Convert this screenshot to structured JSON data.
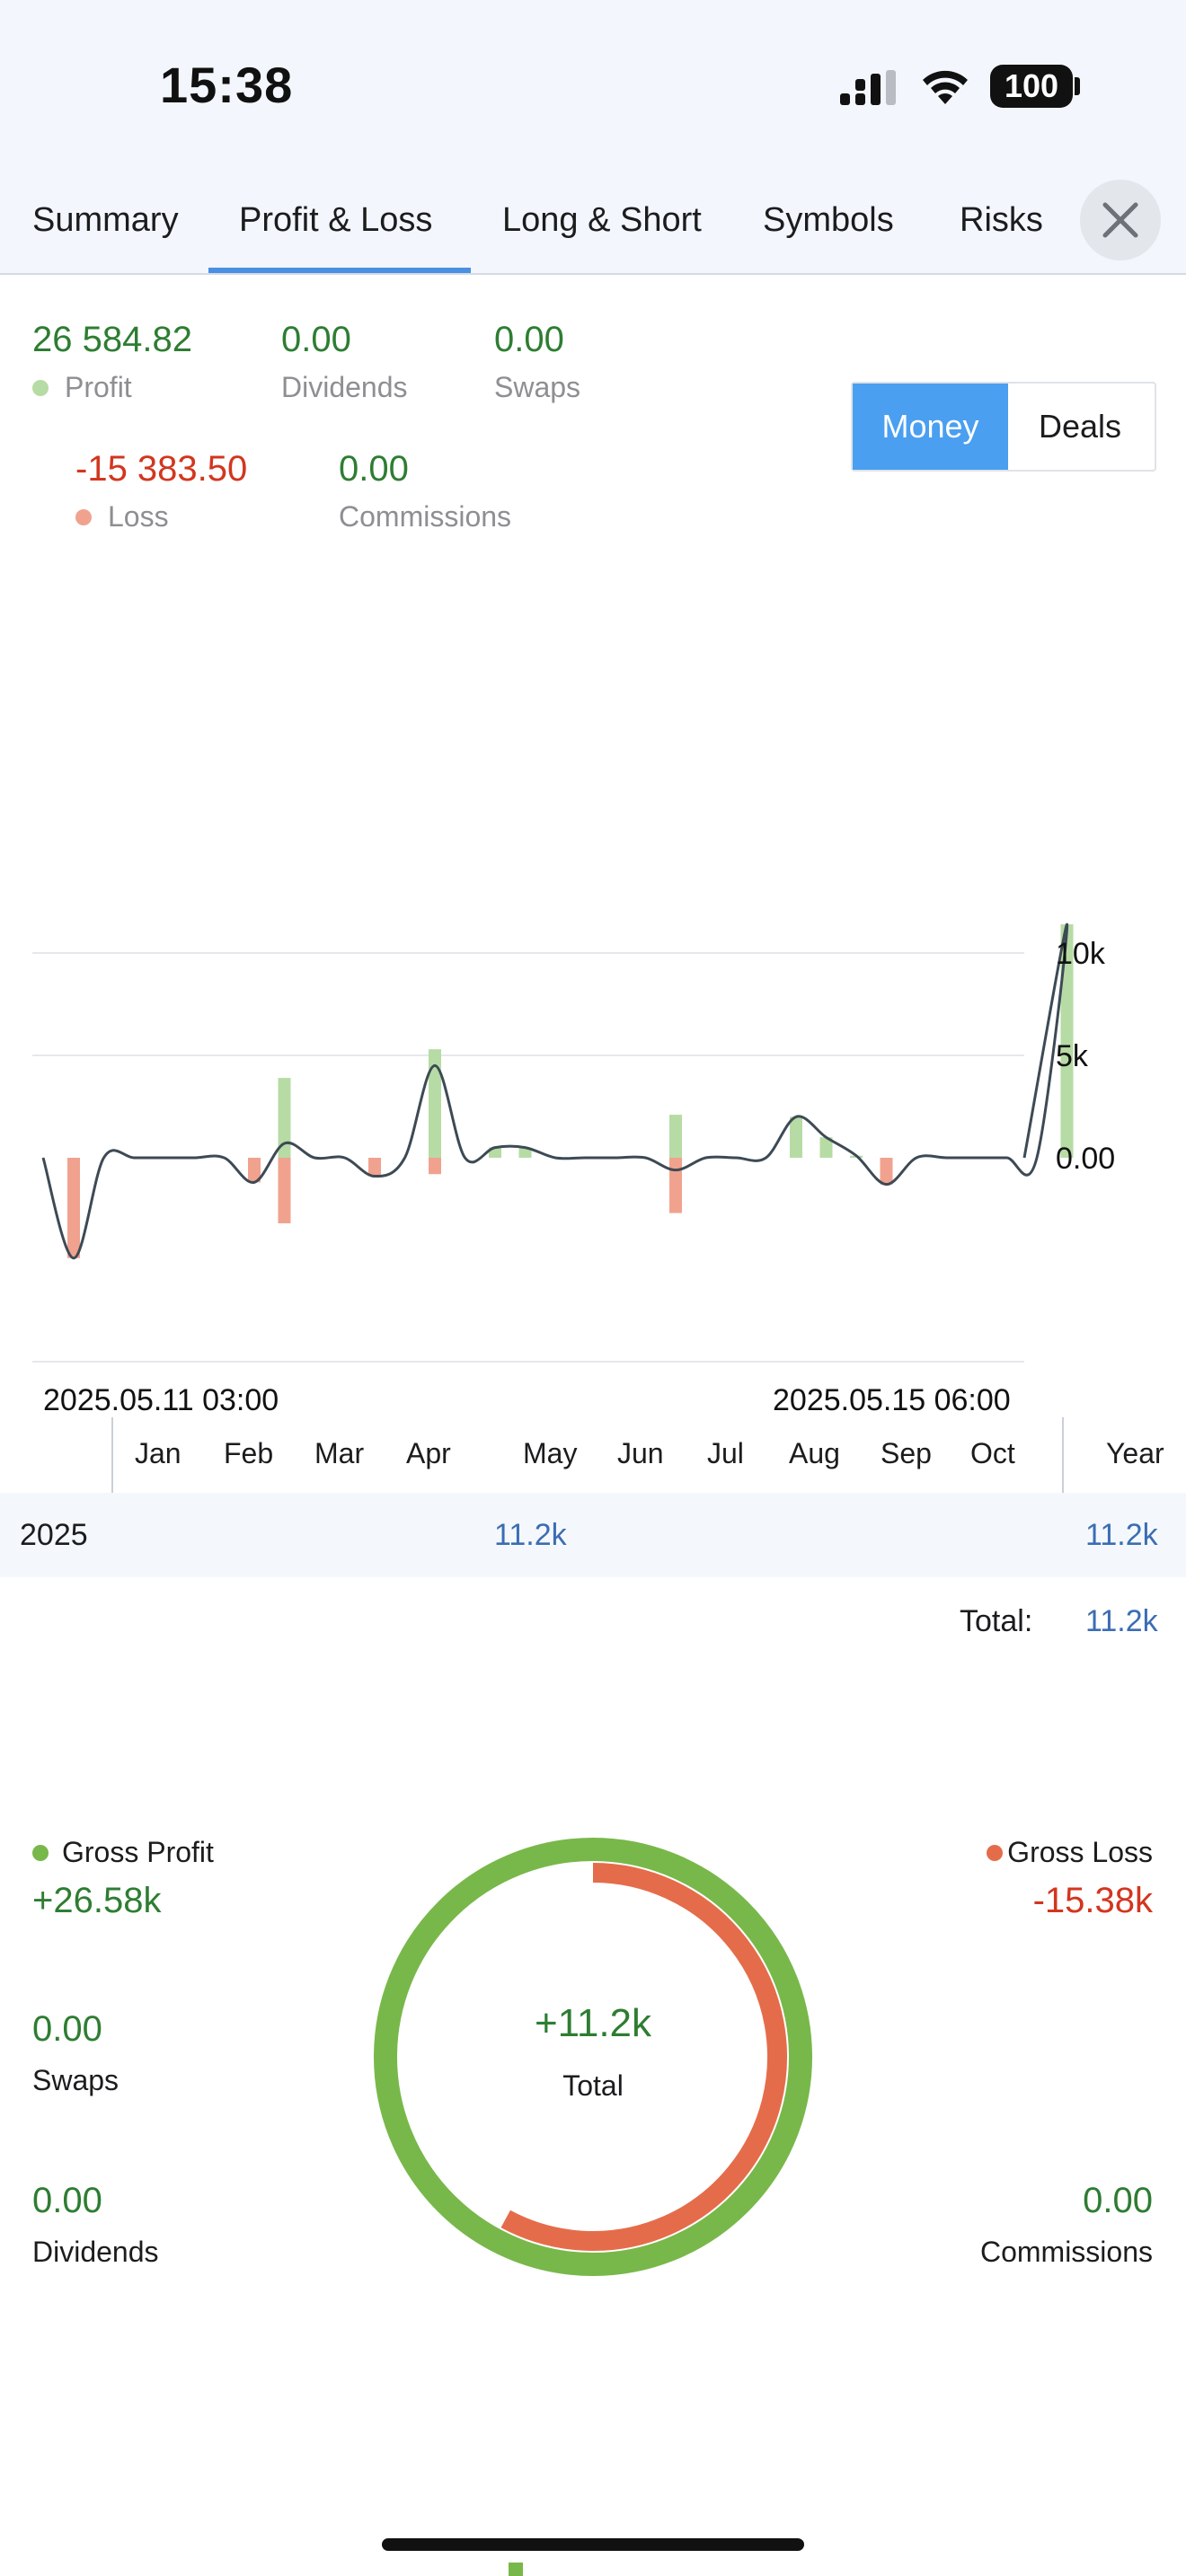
{
  "status_bar": {
    "time": "15:38",
    "battery": "100"
  },
  "tabs": [
    {
      "label": "Summary",
      "active": false
    },
    {
      "label": "Profit & Loss",
      "active": true
    },
    {
      "label": "Long & Short",
      "active": false
    },
    {
      "label": "Symbols",
      "active": false
    },
    {
      "label": "Risks",
      "active": false
    }
  ],
  "summary": {
    "profit": {
      "value": "26 584.82",
      "label": "Profit"
    },
    "dividends": {
      "value": "0.00",
      "label": "Dividends"
    },
    "swaps": {
      "value": "0.00",
      "label": "Swaps"
    },
    "loss": {
      "value": "-15 383.50",
      "label": "Loss"
    },
    "commissions": {
      "value": "0.00",
      "label": "Commissions"
    }
  },
  "toggle": {
    "money": "Money",
    "deals": "Deals",
    "selected": "Money"
  },
  "colors": {
    "profit": "#b7dba4",
    "loss": "#f0a28f",
    "line": "#3d4a55",
    "accent": "#4a9ff0",
    "gross_profit": "#78b84a",
    "gross_loss": "#e56c4a"
  },
  "chart_data": {
    "type": "bar",
    "x_start_label": "2025.05.11 03:00",
    "x_end_label": "2025.05.15 06:00",
    "y_ticks": [
      "10k",
      "5k",
      "0.00"
    ],
    "y_tick_values": [
      10000,
      5000,
      0
    ],
    "ylim": [
      -5000,
      12000
    ],
    "grid": true,
    "series": [
      {
        "kind": "profit",
        "values": [
          0.1,
          0,
          0,
          0,
          0,
          0,
          0,
          3900,
          0,
          0,
          0,
          0,
          5300,
          0,
          500,
          500,
          0,
          0,
          0,
          0,
          2100,
          0,
          0,
          0,
          2000,
          1000,
          100,
          0,
          0,
          0,
          0,
          0,
          0,
          11400
        ]
      },
      {
        "kind": "loss",
        "values": [
          -4900,
          0,
          0,
          0,
          0,
          0,
          -1200,
          -3200,
          0,
          0,
          -900,
          0,
          -800,
          0,
          0,
          0,
          0,
          0,
          0,
          0,
          -2700,
          0,
          0,
          0,
          0,
          0,
          0,
          -1300,
          0,
          0,
          0,
          0,
          0,
          0
        ]
      },
      {
        "kind": "net-line",
        "values": [
          -4900,
          0,
          0,
          0,
          0,
          0,
          -1200,
          700,
          0,
          0,
          -900,
          0,
          4500,
          0,
          500,
          500,
          0,
          0,
          0,
          0,
          -600,
          0,
          0,
          0,
          2000,
          1000,
          100,
          -1300,
          0,
          0,
          0,
          0,
          0,
          11400
        ]
      }
    ]
  },
  "calendar": {
    "months": [
      "Jan",
      "Feb",
      "Mar",
      "Apr",
      "May",
      "Jun",
      "Jul",
      "Aug",
      "Sep",
      "Oct"
    ],
    "year_header": "Year",
    "row_year": "2025",
    "row_value": "11.2k",
    "row_year_total": "11.2k",
    "total_label": "Total:",
    "total_value": "11.2k"
  },
  "donut": {
    "gross_profit_label": "Gross Profit",
    "gross_profit_value": "+26.58k",
    "gross_loss_label": "Gross Loss",
    "gross_loss_value": "-15.38k",
    "gross_profit_amount": 26584.82,
    "gross_loss_amount": 15383.5,
    "center_value": "+11.2k",
    "center_label": "Total",
    "swaps_value": "0.00",
    "swaps_label": "Swaps",
    "dividends_value": "0.00",
    "dividends_label": "Dividends",
    "commissions_value": "0.00",
    "commissions_label": "Commissions"
  }
}
